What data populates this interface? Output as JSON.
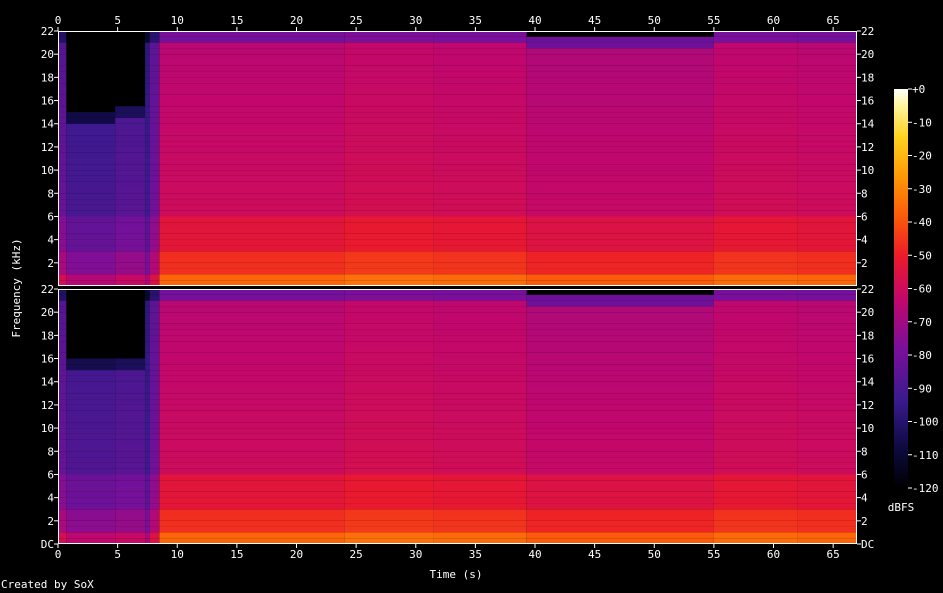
{
  "footer": {
    "credit": "Created by SoX"
  },
  "chart_data": {
    "type": "heatmap",
    "title": "",
    "xlabel": "Time (s)",
    "ylabel": "Frequency (kHz)",
    "colorbar_label": "dBFS",
    "xlim": [
      0,
      67
    ],
    "ylim": [
      0,
      22
    ],
    "x_ticks": [
      "0",
      "5",
      "10",
      "15",
      "20",
      "25",
      "30",
      "35",
      "40",
      "45",
      "50",
      "55",
      "60",
      "65"
    ],
    "y_ticks": [
      "DC",
      "2",
      "4",
      "6",
      "8",
      "10",
      "12",
      "14",
      "16",
      "18",
      "20",
      "22"
    ],
    "colorbar_ticks": [
      "+0",
      "-10",
      "-20",
      "-30",
      "-40",
      "-50",
      "-60",
      "-70",
      "-80",
      "-90",
      "-100",
      "-110",
      "-120"
    ],
    "colorbar_range_dbfs": [
      -120,
      0
    ],
    "channels": [
      {
        "segments": [
          {
            "t0": 0,
            "t1": 0.7,
            "level": -80,
            "top": 22
          },
          {
            "t0": 0.7,
            "t1": 4.8,
            "level": -88,
            "top": 15
          },
          {
            "t0": 4.8,
            "t1": 7.3,
            "level": -84,
            "top": 15.5
          },
          {
            "t0": 7.3,
            "t1": 7.7,
            "level": -90,
            "top": 22
          },
          {
            "t0": 7.7,
            "t1": 8.5,
            "level": -78,
            "top": 22
          },
          {
            "t0": 8.5,
            "t1": 24,
            "level": -58,
            "top": 22
          },
          {
            "t0": 24,
            "t1": 31.5,
            "level": -56,
            "top": 22
          },
          {
            "t0": 31.5,
            "t1": 39.3,
            "level": -57,
            "top": 22
          },
          {
            "t0": 39.3,
            "t1": 55,
            "level": -60,
            "top": 21.5
          },
          {
            "t0": 55,
            "t1": 62,
            "level": -57,
            "top": 22
          },
          {
            "t0": 62,
            "t1": 67,
            "level": -58,
            "top": 22
          }
        ]
      },
      {
        "segments": [
          {
            "t0": 0,
            "t1": 0.7,
            "level": -80,
            "top": 22
          },
          {
            "t0": 0.7,
            "t1": 4.8,
            "level": -86,
            "top": 16
          },
          {
            "t0": 4.8,
            "t1": 7.3,
            "level": -84,
            "top": 16
          },
          {
            "t0": 7.3,
            "t1": 7.7,
            "level": -90,
            "top": 22
          },
          {
            "t0": 7.7,
            "t1": 8.5,
            "level": -78,
            "top": 22
          },
          {
            "t0": 8.5,
            "t1": 24,
            "level": -58,
            "top": 22
          },
          {
            "t0": 24,
            "t1": 31.5,
            "level": -56,
            "top": 22
          },
          {
            "t0": 31.5,
            "t1": 39.3,
            "level": -57,
            "top": 22
          },
          {
            "t0": 39.3,
            "t1": 55,
            "level": -60,
            "top": 21.5
          },
          {
            "t0": 55,
            "t1": 62,
            "level": -57,
            "top": 22
          },
          {
            "t0": 62,
            "t1": 67,
            "level": -58,
            "top": 22
          }
        ]
      }
    ]
  }
}
